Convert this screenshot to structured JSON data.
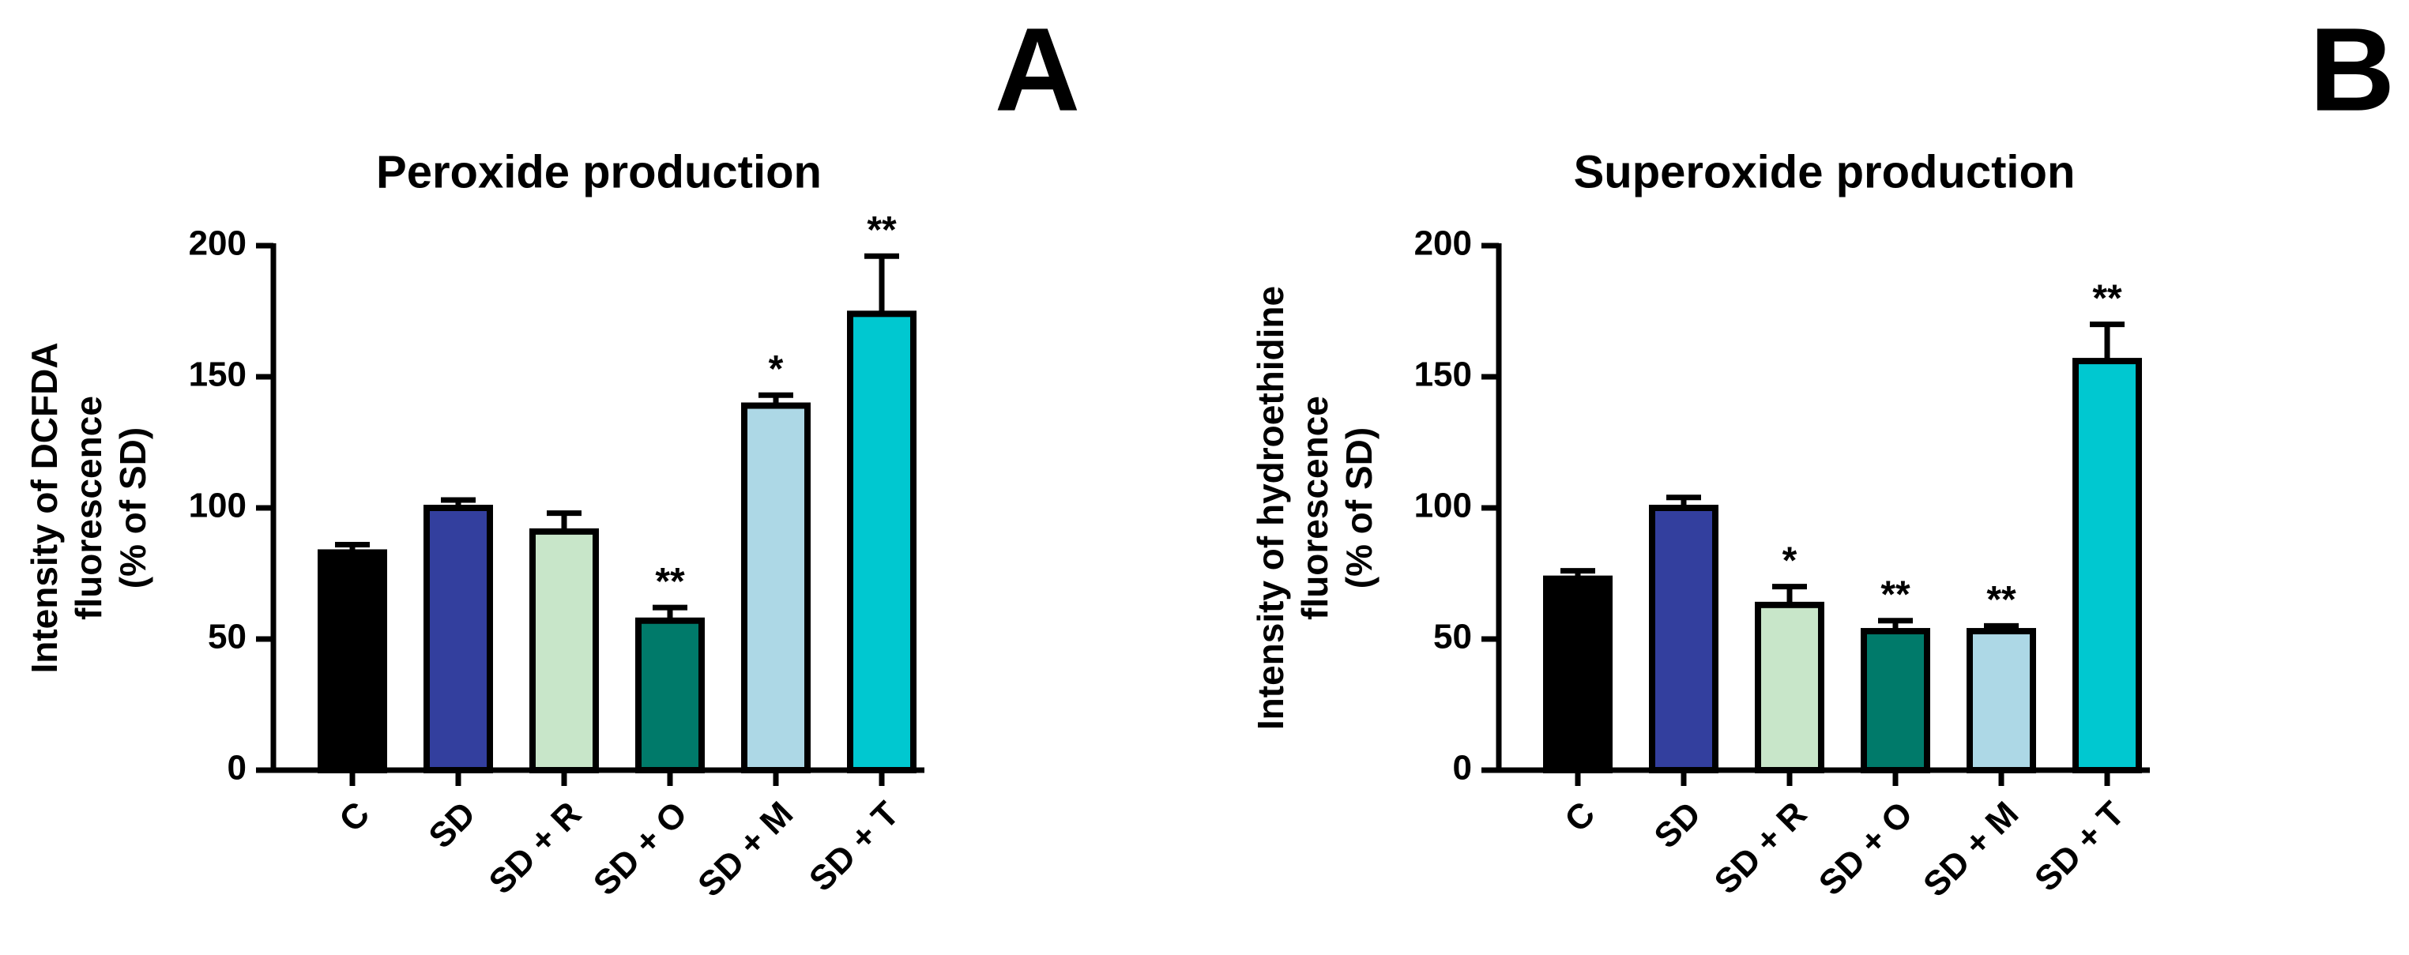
{
  "chart_data": [
    {
      "type": "bar",
      "panel_label": "A",
      "title": "Peroxide production",
      "ylabel": [
        "Intensity of DCFDA",
        "fluorescence",
        "(% of SD)"
      ],
      "categories": [
        "C",
        "SD",
        "SD + R",
        "SD + O",
        "SD + M",
        "SD + T"
      ],
      "values": [
        83,
        100,
        91,
        57,
        139,
        174
      ],
      "errors": [
        3,
        3,
        7,
        5,
        4,
        22
      ],
      "significance": [
        null,
        null,
        null,
        "**",
        "*",
        "**"
      ],
      "colors": [
        "#000000",
        "#333f9e",
        "#c8e6c9",
        "#007a6a",
        "#add8e6",
        "#00c8d0"
      ],
      "ylim": [
        0,
        200
      ],
      "yticks": [
        0,
        50,
        100,
        150,
        200
      ]
    },
    {
      "type": "bar",
      "panel_label": "B",
      "title": "Superoxide production",
      "ylabel": [
        "Intensity of hydroethidine",
        "fluorescence",
        "(% of SD)"
      ],
      "categories": [
        "C",
        "SD",
        "SD + R",
        "SD + O",
        "SD + M",
        "SD + T"
      ],
      "values": [
        73,
        100,
        63,
        53,
        53,
        156
      ],
      "errors": [
        3,
        4,
        7,
        4,
        2,
        14
      ],
      "significance": [
        null,
        null,
        "*",
        "**",
        "**",
        "**"
      ],
      "colors": [
        "#000000",
        "#333f9e",
        "#c8e6c9",
        "#007a6a",
        "#add8e6",
        "#00c8d0"
      ],
      "ylim": [
        0,
        200
      ],
      "yticks": [
        0,
        50,
        100,
        150,
        200
      ]
    }
  ]
}
